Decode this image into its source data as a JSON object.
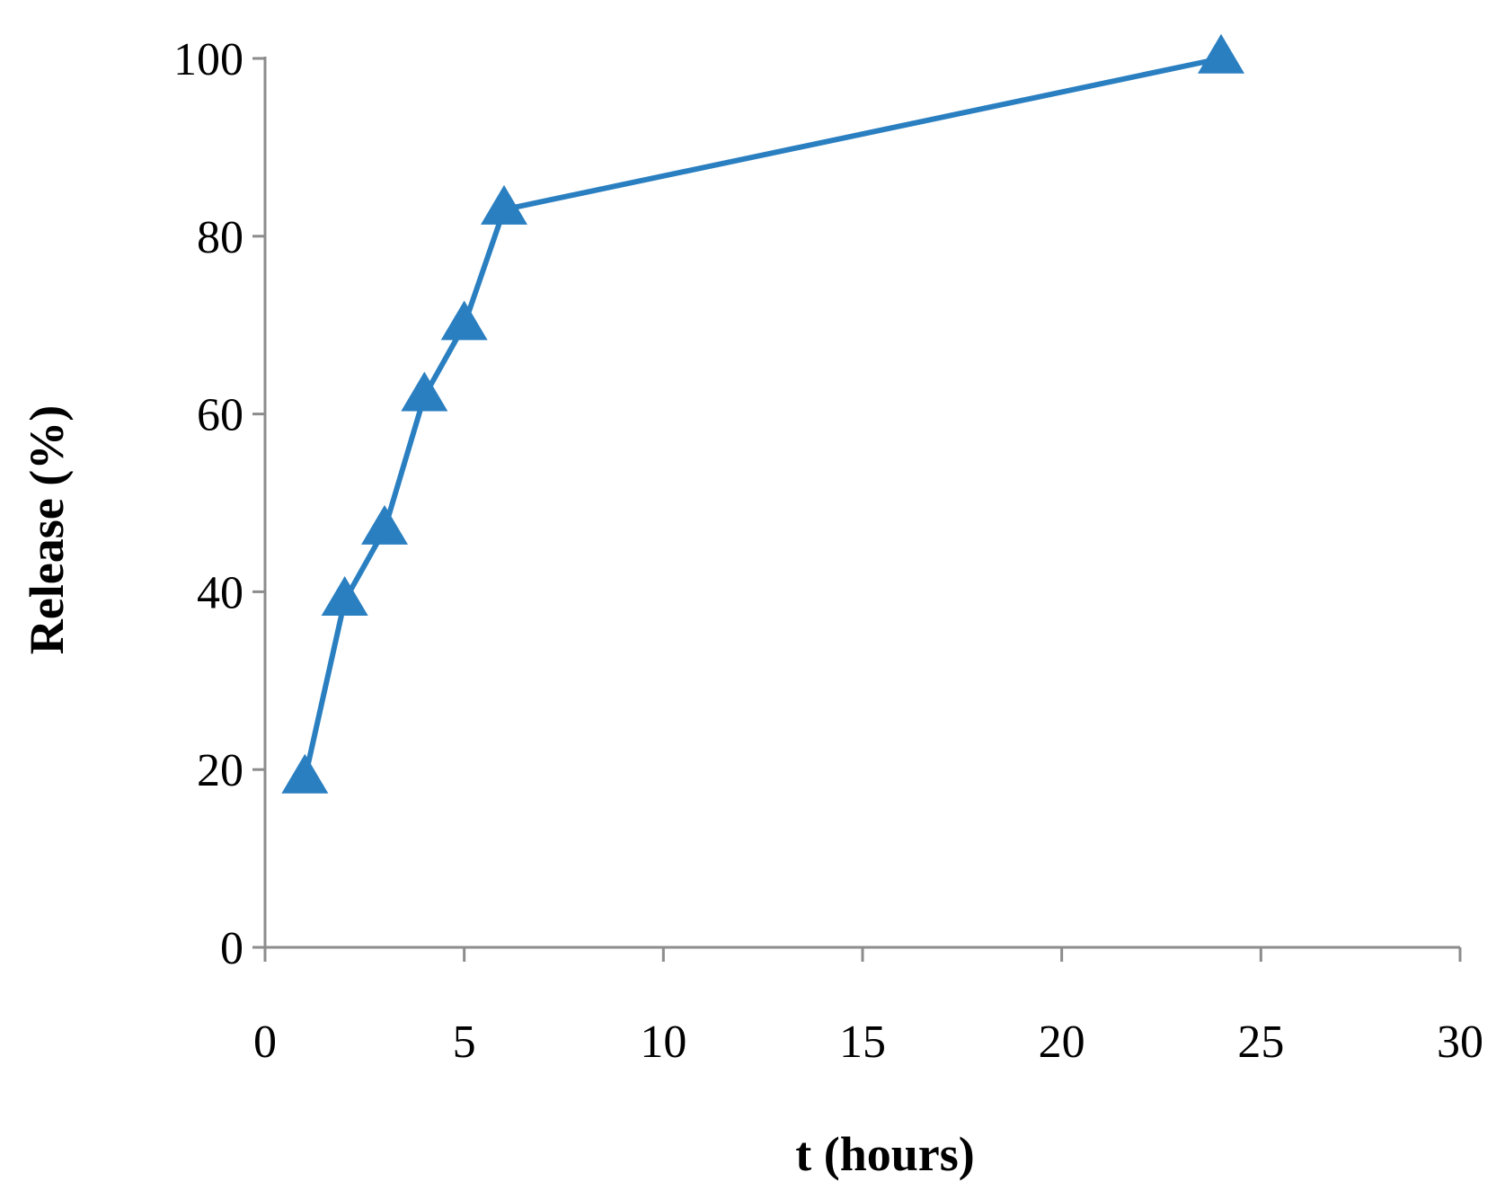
{
  "chart_data": {
    "type": "line",
    "title": "",
    "xlabel": "t (hours)",
    "ylabel": "Release (%)",
    "xlim": [
      0,
      30
    ],
    "ylim": [
      0,
      100
    ],
    "xticks": [
      0,
      5,
      10,
      15,
      20,
      25,
      30
    ],
    "yticks": [
      0,
      20,
      40,
      60,
      80,
      100
    ],
    "grid": false,
    "legend": "none",
    "marker": "triangle",
    "series": [
      {
        "color": "#2a7fc1",
        "x": [
          1,
          2,
          3,
          4,
          5,
          6,
          24
        ],
        "y": [
          19,
          39,
          47,
          62,
          70,
          83,
          100
        ]
      }
    ]
  }
}
